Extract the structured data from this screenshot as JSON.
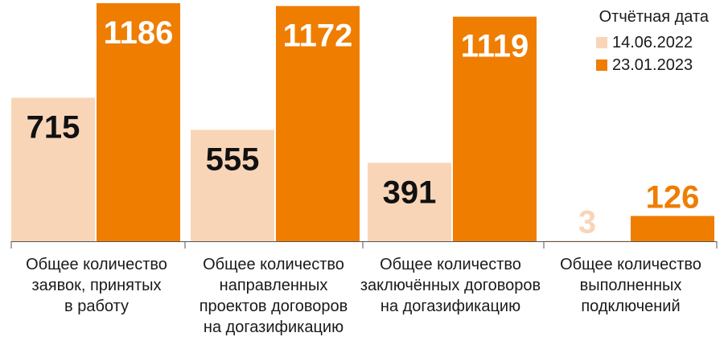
{
  "colors": {
    "series_old": "#f9d5b8",
    "series_new": "#ef7d00",
    "label_dark": "#111111",
    "label_orange": "#ef7d00",
    "label_light": "#f9d5b8",
    "axis": "#555555"
  },
  "chart_data": {
    "type": "bar",
    "legend_position": "top-right",
    "legend_title": "Отчётная дата",
    "categories": [
      [
        "Общее количество",
        "заявок, принятых",
        "в работу"
      ],
      [
        "Общее количество",
        "направленных",
        "проектов договоров",
        "на догазификацию"
      ],
      [
        "Общее количество",
        "заключённых договоров",
        "на догазификацию"
      ],
      [
        "Общее количество",
        "выполненных",
        "подключений"
      ]
    ],
    "series": [
      {
        "name": "14.06.2022",
        "values": [
          715,
          555,
          391,
          3
        ]
      },
      {
        "name": "23.01.2023",
        "values": [
          1186,
          1172,
          1119,
          126
        ]
      }
    ],
    "ylim": [
      0,
      1186
    ]
  }
}
